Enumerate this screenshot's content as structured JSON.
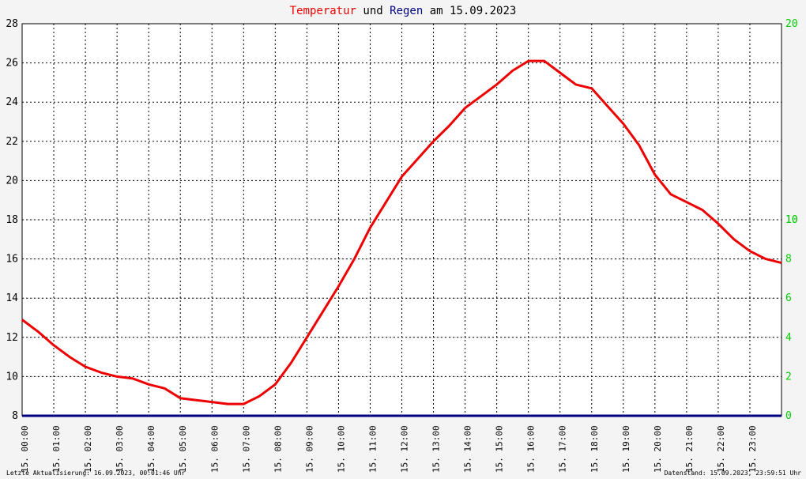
{
  "header": {
    "title_temp": "Temperatur",
    "title_and": "und",
    "title_rain": "Regen",
    "title_rest": "am 15.09.2023"
  },
  "footer": {
    "left": "Letzte Aktualisierung: 16.09.2023, 00:01:46 Uhr",
    "right": "Datenstand: 15.09.2023, 23:59:51 Uhr"
  },
  "colors": {
    "temperature": "#ee0000",
    "rain": "#000080",
    "right_axis": "#00cc00",
    "frame": "#ffffff"
  },
  "chart_data": {
    "type": "line",
    "title": "Temperatur und Regen am 15.09.2023",
    "xlabel": "",
    "ylabel": "",
    "xlim": [
      0,
      24
    ],
    "ylim": [
      8,
      28
    ],
    "y2lim": [
      0,
      20
    ],
    "grid": true,
    "x_tick_labels": [
      "15. 00:00",
      "15. 01:00",
      "15. 02:00",
      "15. 03:00",
      "15. 04:00",
      "15. 05:00",
      "15. 06:00",
      "15. 07:00",
      "15. 08:00",
      "15. 09:00",
      "15. 10:00",
      "15. 11:00",
      "15. 12:00",
      "15. 13:00",
      "15. 14:00",
      "15. 15:00",
      "15. 16:00",
      "15. 17:00",
      "15. 18:00",
      "15. 19:00",
      "15. 20:00",
      "15. 21:00",
      "15. 22:00",
      "15. 23:00"
    ],
    "y_ticks": [
      8,
      10,
      12,
      14,
      16,
      18,
      20,
      22,
      24,
      26,
      28
    ],
    "y2_ticks": [
      0,
      2,
      4,
      6,
      8,
      10,
      20
    ],
    "series": [
      {
        "name": "Temperatur",
        "axis": "left",
        "x": [
          0,
          0.5,
          1,
          1.5,
          2,
          2.5,
          3,
          3.5,
          4,
          4.5,
          5,
          5.5,
          6,
          6.5,
          7,
          7.5,
          8,
          8.5,
          9,
          9.5,
          10,
          10.5,
          11,
          11.5,
          12,
          12.5,
          13,
          13.5,
          14,
          14.5,
          15,
          15.5,
          16,
          16.5,
          17,
          17.5,
          18,
          18.5,
          19,
          19.5,
          20,
          20.5,
          21,
          21.5,
          22,
          22.5,
          23,
          23.5,
          24
        ],
        "values": [
          12.9,
          12.3,
          11.6,
          11.0,
          10.5,
          10.2,
          10.0,
          9.9,
          9.6,
          9.4,
          8.9,
          8.8,
          8.7,
          8.6,
          8.6,
          9.0,
          9.6,
          10.7,
          12.0,
          13.3,
          14.6,
          16.0,
          17.6,
          18.9,
          20.2,
          21.1,
          22.0,
          22.8,
          23.7,
          24.3,
          24.9,
          25.6,
          26.1,
          26.1,
          25.5,
          24.9,
          24.7,
          23.8,
          22.9,
          21.8,
          20.3,
          19.3,
          18.9,
          18.5,
          17.8,
          17.0,
          16.4,
          16.0,
          15.8
        ]
      },
      {
        "name": "Regen",
        "axis": "right",
        "x": [
          0,
          24
        ],
        "values": [
          0,
          0
        ]
      }
    ]
  }
}
